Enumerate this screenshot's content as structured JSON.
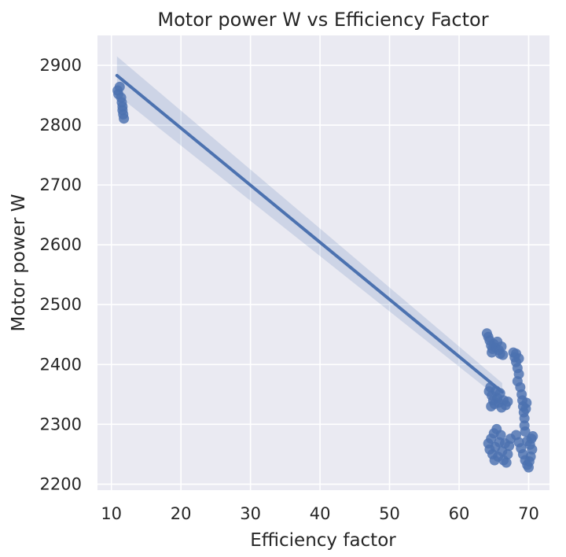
{
  "chart_data": {
    "type": "scatter",
    "title": "Motor power W vs Efficiency Factor",
    "xlabel": "Efficiency factor",
    "ylabel": "Motor power W",
    "xlim": [
      8,
      73
    ],
    "ylim": [
      2190,
      2950
    ],
    "x_ticks": [
      10,
      20,
      30,
      40,
      50,
      60,
      70
    ],
    "y_ticks": [
      2200,
      2300,
      2400,
      2500,
      2600,
      2700,
      2800,
      2900
    ],
    "grid": true,
    "legend": "none",
    "background_color": "#eaeaf2",
    "point_color": "#4c72b0",
    "regression_line": {
      "x": [
        10.8,
        66.2
      ],
      "y": [
        2883,
        2354
      ],
      "ci_upper": [
        2915,
        2369
      ],
      "ci_lower": [
        2851,
        2339
      ]
    },
    "points": [
      {
        "x": 10.9,
        "y": 2858
      },
      {
        "x": 11.0,
        "y": 2852
      },
      {
        "x": 11.2,
        "y": 2864
      },
      {
        "x": 11.4,
        "y": 2846
      },
      {
        "x": 11.5,
        "y": 2838
      },
      {
        "x": 11.6,
        "y": 2831
      },
      {
        "x": 11.6,
        "y": 2825
      },
      {
        "x": 11.7,
        "y": 2818
      },
      {
        "x": 11.8,
        "y": 2811
      },
      {
        "x": 64.0,
        "y": 2452
      },
      {
        "x": 64.2,
        "y": 2446
      },
      {
        "x": 64.4,
        "y": 2440
      },
      {
        "x": 64.6,
        "y": 2432
      },
      {
        "x": 64.8,
        "y": 2426
      },
      {
        "x": 65.0,
        "y": 2434
      },
      {
        "x": 65.2,
        "y": 2428
      },
      {
        "x": 65.5,
        "y": 2438
      },
      {
        "x": 65.7,
        "y": 2424
      },
      {
        "x": 65.9,
        "y": 2418
      },
      {
        "x": 66.1,
        "y": 2430
      },
      {
        "x": 66.3,
        "y": 2416
      },
      {
        "x": 64.7,
        "y": 2420
      },
      {
        "x": 64.3,
        "y": 2355
      },
      {
        "x": 64.5,
        "y": 2362
      },
      {
        "x": 64.7,
        "y": 2348
      },
      {
        "x": 64.9,
        "y": 2340
      },
      {
        "x": 65.1,
        "y": 2334
      },
      {
        "x": 65.3,
        "y": 2356
      },
      {
        "x": 65.5,
        "y": 2344
      },
      {
        "x": 65.7,
        "y": 2336
      },
      {
        "x": 65.9,
        "y": 2352
      },
      {
        "x": 66.1,
        "y": 2328
      },
      {
        "x": 66.4,
        "y": 2340
      },
      {
        "x": 66.7,
        "y": 2332
      },
      {
        "x": 67.0,
        "y": 2338
      },
      {
        "x": 64.6,
        "y": 2330
      },
      {
        "x": 64.2,
        "y": 2268
      },
      {
        "x": 64.4,
        "y": 2258
      },
      {
        "x": 64.6,
        "y": 2276
      },
      {
        "x": 64.8,
        "y": 2250
      },
      {
        "x": 65.0,
        "y": 2285
      },
      {
        "x": 65.2,
        "y": 2262
      },
      {
        "x": 65.4,
        "y": 2292
      },
      {
        "x": 65.6,
        "y": 2246
      },
      {
        "x": 65.8,
        "y": 2270
      },
      {
        "x": 66.0,
        "y": 2282
      },
      {
        "x": 66.2,
        "y": 2255
      },
      {
        "x": 66.4,
        "y": 2240
      },
      {
        "x": 66.6,
        "y": 2268
      },
      {
        "x": 66.8,
        "y": 2236
      },
      {
        "x": 67.0,
        "y": 2250
      },
      {
        "x": 67.2,
        "y": 2264
      },
      {
        "x": 67.4,
        "y": 2276
      },
      {
        "x": 65.1,
        "y": 2240
      },
      {
        "x": 67.8,
        "y": 2420
      },
      {
        "x": 68.0,
        "y": 2412
      },
      {
        "x": 68.2,
        "y": 2404
      },
      {
        "x": 68.4,
        "y": 2394
      },
      {
        "x": 68.6,
        "y": 2384
      },
      {
        "x": 68.4,
        "y": 2372
      },
      {
        "x": 68.8,
        "y": 2362
      },
      {
        "x": 69.0,
        "y": 2350
      },
      {
        "x": 69.1,
        "y": 2340
      },
      {
        "x": 69.2,
        "y": 2330
      },
      {
        "x": 69.3,
        "y": 2320
      },
      {
        "x": 69.4,
        "y": 2310
      },
      {
        "x": 69.4,
        "y": 2298
      },
      {
        "x": 69.5,
        "y": 2288
      },
      {
        "x": 68.2,
        "y": 2418
      },
      {
        "x": 68.6,
        "y": 2410
      },
      {
        "x": 69.6,
        "y": 2326
      },
      {
        "x": 69.7,
        "y": 2336
      },
      {
        "x": 68.2,
        "y": 2282
      },
      {
        "x": 68.6,
        "y": 2270
      },
      {
        "x": 68.9,
        "y": 2260
      },
      {
        "x": 69.2,
        "y": 2250
      },
      {
        "x": 69.5,
        "y": 2240
      },
      {
        "x": 69.8,
        "y": 2232
      },
      {
        "x": 70.0,
        "y": 2228
      },
      {
        "x": 70.2,
        "y": 2266
      },
      {
        "x": 70.4,
        "y": 2276
      },
      {
        "x": 70.5,
        "y": 2258
      },
      {
        "x": 70.3,
        "y": 2246
      },
      {
        "x": 69.8,
        "y": 2272
      },
      {
        "x": 70.6,
        "y": 2280
      },
      {
        "x": 70.1,
        "y": 2238
      }
    ]
  }
}
